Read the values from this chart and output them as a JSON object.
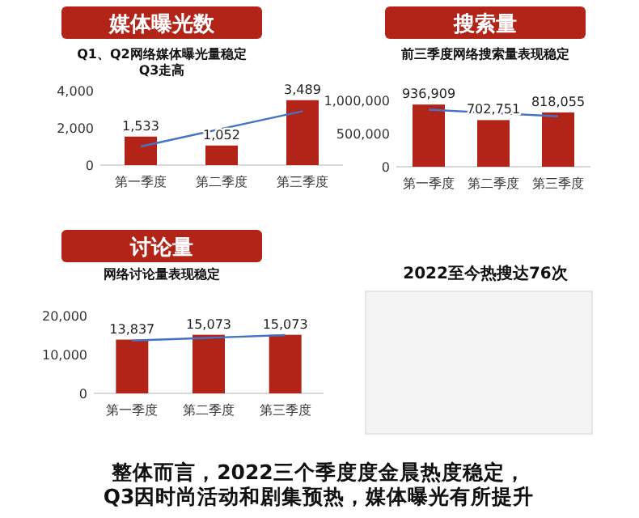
{
  "chart_data": [
    {
      "type": "bar",
      "title": "媒体曝光数",
      "subtitle": "Q1、Q2网络媒体曝光量稳定\nQ3走高",
      "categories": [
        "第一季度",
        "第二季度",
        "第三季度"
      ],
      "series": [
        {
          "type": "bar",
          "color": "#b22418",
          "values": [
            1533,
            1052,
            3489
          ]
        },
        {
          "type": "line",
          "color": "#4472c4",
          "values": [
            1000,
            1950,
            2900
          ]
        }
      ],
      "ylim": [
        0,
        4000
      ],
      "yticks": [
        {
          "value": 0,
          "label": "0"
        },
        {
          "value": 2000,
          "label": "2,000"
        },
        {
          "value": 4000,
          "label": "4,000"
        }
      ],
      "value_labels": [
        "1,533",
        "1,052",
        "3,489"
      ],
      "grid": false
    },
    {
      "type": "bar",
      "title": "搜索量",
      "subtitle": "前三季度网络搜索量表现稳定",
      "categories": [
        "第一季度",
        "第二季度",
        "第三季度"
      ],
      "series": [
        {
          "type": "bar",
          "color": "#b22418",
          "values": [
            936909,
            702751,
            818055
          ]
        },
        {
          "type": "line",
          "color": "#4472c4",
          "values": [
            860000,
            810000,
            760000
          ]
        }
      ],
      "ylim": [
        0,
        1000000
      ],
      "yticks": [
        {
          "value": 0,
          "label": "0"
        },
        {
          "value": 500000,
          "label": "500,000"
        },
        {
          "value": 1000000,
          "label": "1,000,000"
        }
      ],
      "value_labels": [
        "936,909",
        "702,751",
        "818,055"
      ],
      "grid": false
    },
    {
      "type": "bar",
      "title": "讨论量",
      "subtitle": "网络讨论量表现稳定",
      "categories": [
        "第一季度",
        "第二季度",
        "第三季度"
      ],
      "series": [
        {
          "type": "bar",
          "color": "#b22418",
          "values": [
            13837,
            15073,
            15073
          ]
        },
        {
          "type": "line",
          "color": "#4472c4",
          "values": [
            13600,
            14300,
            15000
          ]
        }
      ],
      "ylim": [
        0,
        20000
      ],
      "yticks": [
        {
          "value": 0,
          "label": "0"
        },
        {
          "value": 10000,
          "label": "10,000"
        },
        {
          "value": 20000,
          "label": "20,000"
        }
      ],
      "value_labels": [
        "13,837",
        "15,073",
        "15,073"
      ],
      "grid": false
    },
    {
      "type": "other",
      "subtitle": "2022至今热搜达76次",
      "annotations": [
        "整体而言，2022三个季度度金晨热度稳定，",
        "Q3因时尚活动和剧集预热，媒体曝光有所提升"
      ]
    }
  ]
}
